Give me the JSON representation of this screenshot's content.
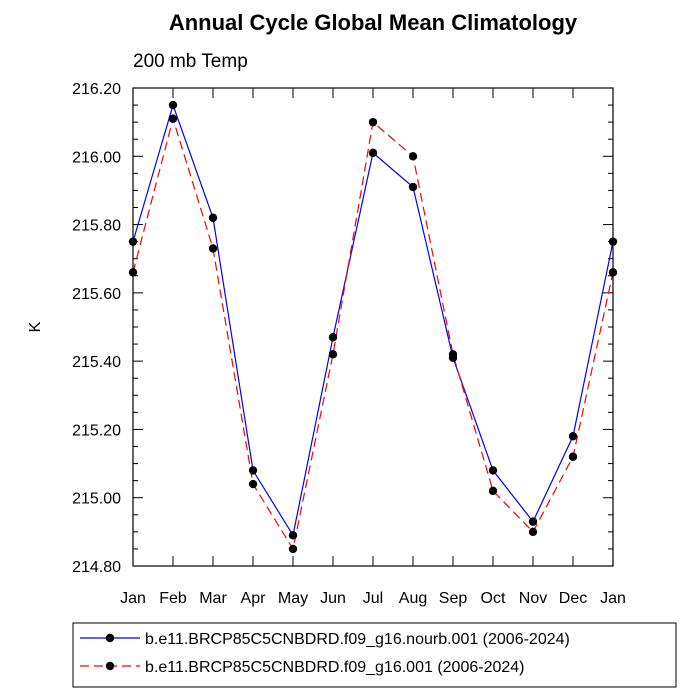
{
  "chart_data": {
    "type": "line",
    "title": "Annual Cycle Global Mean Climatology",
    "subtitle": "200 mb Temp",
    "ylabel": "K",
    "xlabel": "",
    "categories": [
      "Jan",
      "Feb",
      "Mar",
      "Apr",
      "May",
      "Jun",
      "Jul",
      "Aug",
      "Sep",
      "Oct",
      "Nov",
      "Dec",
      "Jan"
    ],
    "ylim": [
      214.8,
      216.2
    ],
    "yticks": [
      214.8,
      215.0,
      215.2,
      215.4,
      215.6,
      215.8,
      216.0,
      216.2
    ],
    "ytick_labels": [
      "214.80",
      "215.00",
      "215.20",
      "215.40",
      "215.60",
      "215.80",
      "216.00",
      "216.20"
    ],
    "grid": false,
    "legend_position": "bottom",
    "series": [
      {
        "name": "b.e11.BRCP85C5CNBDRD.f09_g16.nourb.001 (2006-2024)",
        "color": "#0000ff",
        "dash": "solid",
        "values": [
          215.75,
          216.15,
          215.82,
          215.08,
          214.89,
          215.47,
          216.01,
          215.91,
          215.41,
          215.08,
          214.93,
          215.18,
          215.75
        ]
      },
      {
        "name": "b.e11.BRCP85C5CNBDRD.f09_g16.001 (2006-2024)",
        "color": "#ff0000",
        "dash": "dashed",
        "values": [
          215.66,
          216.11,
          215.73,
          215.04,
          214.85,
          215.42,
          216.1,
          216.0,
          215.42,
          215.02,
          214.9,
          215.12,
          215.66
        ]
      }
    ]
  }
}
